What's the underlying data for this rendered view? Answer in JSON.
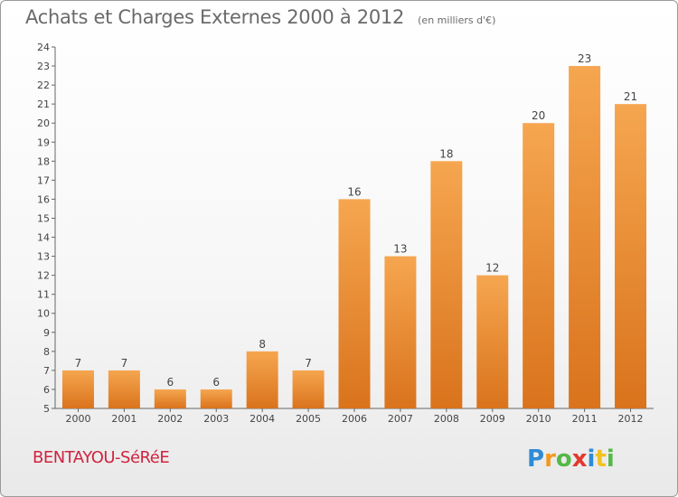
{
  "header": {
    "title": "Achats et Charges Externes 2000 à 2012",
    "subtitle": "(en milliers d'€)"
  },
  "footer": {
    "commune": "BENTAYOU-SéRéE",
    "logo": "Proxiti"
  },
  "colors": {
    "bar_top": "#f6a650",
    "bar_bottom": "#d9731c",
    "text": "#555555",
    "commune": "#d0233f"
  },
  "chart_data": {
    "type": "bar",
    "title": "Achats et Charges Externes 2000 à 2012",
    "subtitle": "(en milliers d'€)",
    "categories": [
      "2000",
      "2001",
      "2002",
      "2003",
      "2004",
      "2005",
      "2006",
      "2007",
      "2008",
      "2009",
      "2010",
      "2011",
      "2012"
    ],
    "values": [
      7,
      7,
      6,
      6,
      8,
      7,
      16,
      13,
      18,
      12,
      20,
      23,
      21
    ],
    "data_labels": [
      "7",
      "7",
      "6",
      "6",
      "8",
      "7",
      "16",
      "13",
      "18",
      "12",
      "20",
      "23",
      "21"
    ],
    "xlabel": "",
    "ylabel": "",
    "ylim": [
      5,
      24
    ],
    "yticks": [
      5,
      6,
      7,
      8,
      9,
      10,
      11,
      12,
      13,
      14,
      15,
      16,
      17,
      18,
      19,
      20,
      21,
      22,
      23,
      24
    ],
    "grid": false,
    "legend": "none"
  }
}
